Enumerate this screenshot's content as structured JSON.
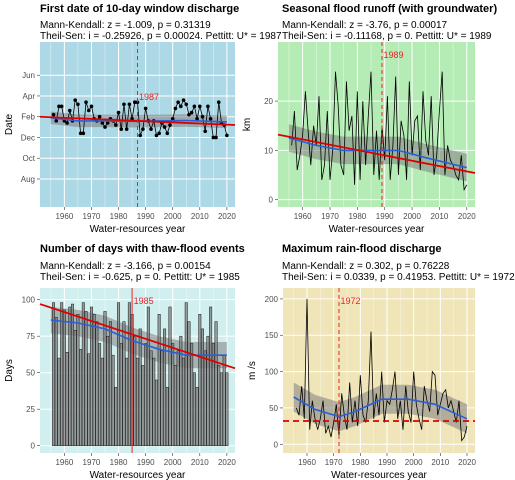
{
  "chart_data": [
    {
      "type": "line",
      "title": "First date of 10-day window discharge",
      "subtitle1": "Mann-Kendall: z = -1.009, p = 0.31319",
      "subtitle2": "Theil-Sen: i = -0.25926, p = 0.00024. Pettitt: U* = 1987",
      "xlabel": "Water-resources year",
      "ylabel": "Date",
      "xlim": [
        1951,
        2023
      ],
      "ylim": [
        -0.35,
        7.6
      ],
      "x_ticks": [
        1960,
        1970,
        1980,
        1990,
        2000,
        2010,
        2020
      ],
      "y_ticks": [
        {
          "v": 1,
          "label": "Aug"
        },
        {
          "v": 2,
          "label": "Oct"
        },
        {
          "v": 3,
          "label": "Dec"
        },
        {
          "v": 4,
          "label": "Feb"
        },
        {
          "v": 5,
          "label": "Apr"
        },
        {
          "v": 6,
          "label": "Jun"
        }
      ],
      "background": "#add8e6",
      "style": "points",
      "change_point": {
        "x": 1987,
        "label": "1987"
      },
      "trend_line": [
        [
          1951,
          4.0
        ],
        [
          2023,
          3.6
        ]
      ],
      "smooth": [
        [
          1955,
          3.95
        ],
        [
          1965,
          3.8
        ],
        [
          1975,
          3.8
        ],
        [
          1985,
          3.78
        ],
        [
          1995,
          3.8
        ],
        [
          2005,
          3.82
        ],
        [
          2020,
          3.75
        ]
      ],
      "band_width": 0.3,
      "x": [
        1956,
        1957,
        1958,
        1959,
        1960,
        1961,
        1962,
        1963,
        1964,
        1965,
        1966,
        1967,
        1968,
        1969,
        1970,
        1971,
        1972,
        1973,
        1974,
        1975,
        1976,
        1977,
        1978,
        1979,
        1980,
        1981,
        1982,
        1983,
        1984,
        1985,
        1986,
        1987,
        1988,
        1989,
        1990,
        1991,
        1992,
        1993,
        1994,
        1995,
        1996,
        1997,
        1998,
        1999,
        2000,
        2001,
        2002,
        2003,
        2004,
        2005,
        2006,
        2007,
        2008,
        2009,
        2010,
        2011,
        2012,
        2013,
        2014,
        2015,
        2016,
        2017,
        2018,
        2019,
        2020
      ],
      "values": [
        4.1,
        3.8,
        4.5,
        4.5,
        3.8,
        3.7,
        4.3,
        3.8,
        4.8,
        4.6,
        3.2,
        3.2,
        4.7,
        4.3,
        4.5,
        3.9,
        3.8,
        4.0,
        3.7,
        3.5,
        3.7,
        3.9,
        3.8,
        3.6,
        4.2,
        3.4,
        4.6,
        3.4,
        4.6,
        3.9,
        4.7,
        4.7,
        3.1,
        3.4,
        4.4,
        3.8,
        3.4,
        3.8,
        3.1,
        3.2,
        3.7,
        3.5,
        3.2,
        3.6,
        3.9,
        4.4,
        4.7,
        4.5,
        4.8,
        4.6,
        4.1,
        4.2,
        4.5,
        3.9,
        4.5,
        4.0,
        3.3,
        4.5,
        3.9,
        3.0,
        3.0,
        4.7,
        3.7,
        3.6,
        3.1
      ]
    },
    {
      "type": "line",
      "title": "Seasonal flood runoff (with groundwater)",
      "subtitle1": "Mann-Kendall: z = -3.76, p = 0.00017",
      "subtitle2": "Theil-Sen: i = -0.11168, p = 0. Pettitt: U* = 1989",
      "xlabel": "Water-resources year",
      "ylabel": "km",
      "xlim": [
        1951,
        2023
      ],
      "ylim": [
        -1.5,
        32
      ],
      "x_ticks": [
        1960,
        1970,
        1980,
        1990,
        2000,
        2010,
        2020
      ],
      "y_ticks": [
        {
          "v": 0,
          "label": "0"
        },
        {
          "v": 10,
          "label": "10"
        },
        {
          "v": 20,
          "label": "20"
        }
      ],
      "background": "#b5ebb5",
      "style": "line",
      "change_point": {
        "x": 1989,
        "label": "1989"
      },
      "trend_line": [
        [
          1951,
          13.2
        ],
        [
          2023,
          5.4
        ]
      ],
      "smooth": [
        [
          1955,
          12.5
        ],
        [
          1965,
          11.0
        ],
        [
          1975,
          10.0
        ],
        [
          1985,
          10.0
        ],
        [
          1995,
          10.0
        ],
        [
          2005,
          8.5
        ],
        [
          2020,
          6.5
        ]
      ],
      "band_width": 2.8,
      "x": [
        1956,
        1957,
        1958,
        1959,
        1960,
        1961,
        1962,
        1963,
        1964,
        1965,
        1966,
        1967,
        1968,
        1969,
        1970,
        1971,
        1972,
        1973,
        1974,
        1975,
        1976,
        1977,
        1978,
        1979,
        1980,
        1981,
        1982,
        1983,
        1984,
        1985,
        1986,
        1987,
        1988,
        1989,
        1990,
        1991,
        1992,
        1993,
        1994,
        1995,
        1996,
        1997,
        1998,
        1999,
        2000,
        2001,
        2002,
        2003,
        2004,
        2005,
        2006,
        2007,
        2008,
        2009,
        2010,
        2011,
        2012,
        2013,
        2014,
        2015,
        2016,
        2017,
        2018,
        2019,
        2020
      ],
      "values": [
        11,
        18,
        6,
        9,
        13,
        22,
        14,
        7,
        15,
        11,
        21,
        4,
        7,
        18,
        4,
        10,
        26,
        19,
        7,
        5,
        24,
        14,
        17,
        3,
        22,
        4,
        20,
        7,
        17,
        26,
        5,
        14,
        4,
        15,
        8,
        21,
        4,
        11,
        25,
        5,
        16,
        13,
        4,
        24,
        9,
        16,
        17,
        6,
        22,
        12,
        9,
        21,
        5,
        9,
        18,
        26,
        5,
        11,
        8,
        7,
        5,
        4,
        9,
        2,
        3
      ]
    },
    {
      "type": "bar",
      "title": "Number of days with thaw-flood events",
      "subtitle1": "Mann-Kendall: z = -3.166, p = 0.00154",
      "subtitle2": "Theil-Sen: i = -0.625, p = 0. Pettitt: U* = 1985",
      "xlabel": "Water-resources year",
      "ylabel": "Days",
      "xlim": [
        1951,
        2023
      ],
      "ylim": [
        -5,
        108
      ],
      "x_ticks": [
        1960,
        1970,
        1980,
        1990,
        2000,
        2010,
        2020
      ],
      "y_ticks": [
        {
          "v": 0,
          "label": "0"
        },
        {
          "v": 25,
          "label": "25"
        },
        {
          "v": 50,
          "label": "50"
        },
        {
          "v": 75,
          "label": "75"
        },
        {
          "v": 100,
          "label": "100"
        }
      ],
      "background": "#d1efef",
      "style": "bars",
      "change_point": {
        "x": 1985,
        "label": "1985"
      },
      "trend_line": [
        [
          1951,
          97
        ],
        [
          2023,
          53
        ]
      ],
      "smooth": [
        [
          1955,
          86
        ],
        [
          1965,
          84
        ],
        [
          1975,
          80
        ],
        [
          1985,
          72
        ],
        [
          1995,
          66
        ],
        [
          2005,
          62
        ],
        [
          2020,
          62
        ]
      ],
      "band_width": 9,
      "x": [
        1956,
        1957,
        1958,
        1959,
        1960,
        1961,
        1962,
        1963,
        1964,
        1965,
        1966,
        1967,
        1968,
        1969,
        1970,
        1971,
        1972,
        1973,
        1974,
        1975,
        1976,
        1977,
        1978,
        1979,
        1980,
        1981,
        1982,
        1983,
        1984,
        1985,
        1986,
        1987,
        1988,
        1989,
        1990,
        1991,
        1992,
        1993,
        1994,
        1995,
        1996,
        1997,
        1998,
        1999,
        2000,
        2001,
        2002,
        2003,
        2004,
        2005,
        2006,
        2007,
        2008,
        2009,
        2010,
        2011,
        2012,
        2013,
        2014,
        2015,
        2016,
        2017,
        2018,
        2019,
        2020
      ],
      "values": [
        98,
        88,
        60,
        98,
        93,
        64,
        95,
        97,
        79,
        90,
        66,
        98,
        92,
        63,
        95,
        90,
        85,
        70,
        60,
        92,
        75,
        85,
        62,
        40,
        98,
        70,
        85,
        60,
        98,
        90,
        75,
        60,
        80,
        55,
        70,
        95,
        65,
        60,
        45,
        90,
        65,
        80,
        40,
        95,
        70,
        55,
        65,
        75,
        60,
        98,
        85,
        70,
        50,
        40,
        90,
        80,
        65,
        75,
        95,
        70,
        85,
        55,
        50,
        62,
        50
      ]
    },
    {
      "type": "line",
      "title": "Maximum rain-flood discharge",
      "subtitle1": "Mann-Kendall: z = 0.302, p = 0.76228",
      "subtitle2": "Theil-Sen: i = 0.0339, p = 0.41953. Pettitt: U* = 1972",
      "xlabel": "Water-resources year",
      "ylabel": "m  /s",
      "xlim": [
        1951,
        2023
      ],
      "ylim": [
        -12,
        215
      ],
      "x_ticks": [
        1960,
        1970,
        1980,
        1990,
        2000,
        2010,
        2020
      ],
      "y_ticks": [
        {
          "v": 0,
          "label": "0"
        },
        {
          "v": 50,
          "label": "50"
        },
        {
          "v": 100,
          "label": "100"
        },
        {
          "v": 150,
          "label": "150"
        },
        {
          "v": 200,
          "label": "200"
        }
      ],
      "background": "#efe5b8",
      "style": "line",
      "change_point": {
        "x": 1972,
        "label": "1972"
      },
      "trend_line": [
        [
          1951,
          32
        ],
        [
          2023,
          34
        ]
      ],
      "hline_dashed": 32,
      "smooth": [
        [
          1955,
          65
        ],
        [
          1963,
          48
        ],
        [
          1972,
          38
        ],
        [
          1978,
          45
        ],
        [
          1988,
          62
        ],
        [
          1998,
          62
        ],
        [
          2008,
          55
        ],
        [
          2020,
          35
        ]
      ],
      "band_width": 20,
      "x": [
        1956,
        1957,
        1958,
        1959,
        1960,
        1961,
        1962,
        1963,
        1964,
        1965,
        1966,
        1967,
        1968,
        1969,
        1970,
        1971,
        1972,
        1973,
        1974,
        1975,
        1976,
        1977,
        1978,
        1979,
        1980,
        1981,
        1982,
        1983,
        1984,
        1985,
        1986,
        1987,
        1988,
        1989,
        1990,
        1991,
        1992,
        1993,
        1994,
        1995,
        1996,
        1997,
        1998,
        1999,
        2000,
        2001,
        2002,
        2003,
        2004,
        2005,
        2006,
        2007,
        2008,
        2009,
        2010,
        2011,
        2012,
        2013,
        2014,
        2015,
        2016,
        2017,
        2018,
        2019,
        2020
      ],
      "values": [
        50,
        40,
        80,
        35,
        200,
        20,
        60,
        35,
        20,
        35,
        60,
        15,
        25,
        10,
        30,
        55,
        12,
        70,
        40,
        20,
        85,
        30,
        60,
        25,
        95,
        40,
        30,
        60,
        155,
        35,
        70,
        40,
        100,
        30,
        60,
        55,
        75,
        100,
        35,
        60,
        20,
        80,
        45,
        30,
        100,
        55,
        35,
        20,
        80,
        60,
        45,
        100,
        95,
        40,
        55,
        70,
        75,
        50,
        60,
        45,
        30,
        60,
        5,
        10,
        25
      ]
    }
  ]
}
